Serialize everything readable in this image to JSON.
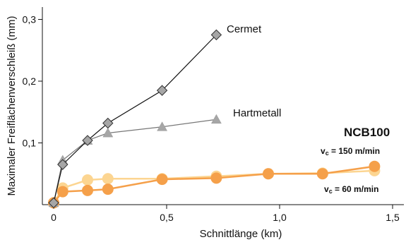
{
  "chart_data": {
    "type": "line",
    "xlabel": "Schnittlänge (km)",
    "ylabel": "Maximaler Freiflächenverschleiß (mm)",
    "xlim": [
      -0.05,
      1.55
    ],
    "ylim": [
      0,
      0.32
    ],
    "xticks": [
      0,
      0.5,
      1.0,
      1.5
    ],
    "xtick_labels": [
      "0",
      "0,5",
      "1,0",
      "1,5"
    ],
    "yticks": [
      0.1,
      0.2,
      0.3
    ],
    "ytick_labels": [
      "0,1",
      "0,2",
      "0,3"
    ],
    "grid": false,
    "series": [
      {
        "name": "Cermet",
        "marker": "diamond",
        "line_color": "#111111",
        "marker_color": "#a6a6a6",
        "points": [
          [
            0,
            0.003
          ],
          [
            0.04,
            0.065
          ],
          [
            0.15,
            0.104
          ],
          [
            0.24,
            0.132
          ],
          [
            0.48,
            0.185
          ],
          [
            0.72,
            0.275
          ]
        ]
      },
      {
        "name": "Hartmetall",
        "marker": "triangle",
        "line_color": "#777777",
        "marker_color": "#a6a6a6",
        "points": [
          [
            0,
            0.003
          ],
          [
            0.04,
            0.072
          ],
          [
            0.15,
            0.104
          ],
          [
            0.24,
            0.116
          ],
          [
            0.48,
            0.126
          ],
          [
            0.72,
            0.138
          ]
        ]
      },
      {
        "name": "vc = 150 m/min",
        "marker": "circle",
        "line_color": "#fcd591",
        "marker_color": "#fcd591",
        "points": [
          [
            0,
            0.003
          ],
          [
            0.04,
            0.027
          ],
          [
            0.15,
            0.04
          ],
          [
            0.24,
            0.042
          ],
          [
            0.48,
            0.042
          ],
          [
            0.72,
            0.046
          ],
          [
            0.95,
            0.05
          ],
          [
            1.19,
            0.051
          ],
          [
            1.42,
            0.055
          ]
        ]
      },
      {
        "name": "vc = 60 m/min",
        "marker": "circle",
        "line_color": "#f5a04a",
        "marker_color": "#f5a04a",
        "points": [
          [
            0,
            0.003
          ],
          [
            0.04,
            0.021
          ],
          [
            0.15,
            0.023
          ],
          [
            0.24,
            0.025
          ],
          [
            0.48,
            0.041
          ],
          [
            0.72,
            0.043
          ],
          [
            0.95,
            0.05
          ],
          [
            1.19,
            0.05
          ],
          [
            1.42,
            0.062
          ]
        ]
      }
    ],
    "annotations": {
      "cermet": "Cermet",
      "hartmetall": "Hartmetall",
      "ncb": "NCB100",
      "vc150_prefix": "v",
      "vc150_sub": "c",
      "vc150_rest": " = 150 m/min",
      "vc60_prefix": "v",
      "vc60_sub": "c",
      "vc60_rest": " = 60 m/min"
    }
  }
}
